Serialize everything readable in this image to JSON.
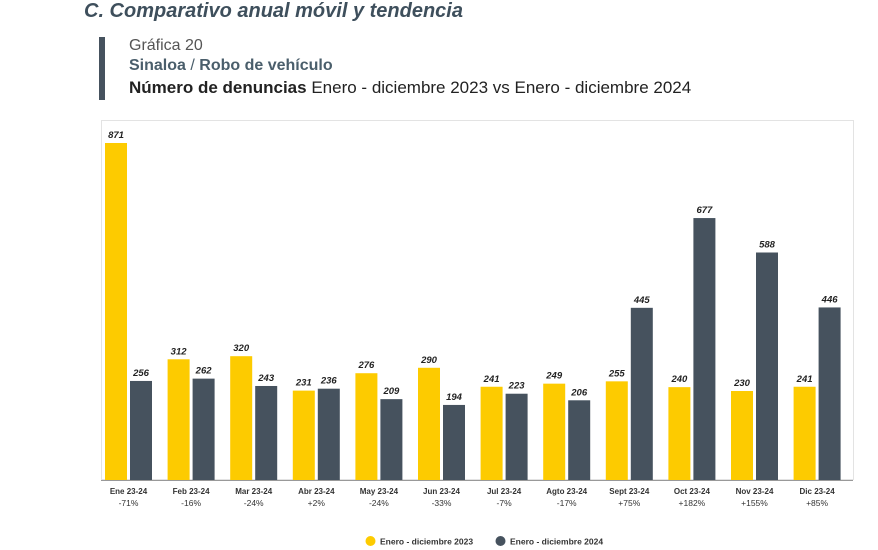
{
  "header": {
    "section_title": "C. Comparativo anual móvil y tendencia",
    "chart_number": "Gráfica 20",
    "state": "Sinaloa",
    "separator": "/",
    "crime": "Robo de vehículo",
    "metric_bold": "Número de denuncias",
    "period": "Enero - diciembre 2023 vs Enero - diciembre 2024"
  },
  "colors": {
    "series_2023": "#fdcb00",
    "series_2024": "#46525e",
    "title": "#3e4f5c",
    "axis": "#999999"
  },
  "chart_data": {
    "type": "bar",
    "title": "Número de denuncias Enero - diciembre 2023 vs Enero - diciembre 2024",
    "categories": [
      "Ene 23-24",
      "Feb 23-24",
      "Mar 23-24",
      "Abr 23-24",
      "May 23-24",
      "Jun 23-24",
      "Jul 23-24",
      "Agto 23-24",
      "Sept 23-24",
      "Oct 23-24",
      "Nov 23-24",
      "Dic 23-24"
    ],
    "pct_change": [
      "-71%",
      "-16%",
      "-24%",
      "+2%",
      "-24%",
      "-33%",
      "-7%",
      "-17%",
      "+75%",
      "+182%",
      "+155%",
      "+85%"
    ],
    "series": [
      {
        "name": "Enero - diciembre 2023",
        "values": [
          871,
          312,
          320,
          231,
          276,
          290,
          241,
          249,
          255,
          240,
          230,
          241
        ]
      },
      {
        "name": "Enero - diciembre 2024",
        "values": [
          256,
          262,
          243,
          236,
          209,
          194,
          223,
          206,
          445,
          677,
          588,
          446
        ]
      }
    ],
    "ylim": [
      0,
      871
    ],
    "grid": false,
    "legend_position": "bottom-center"
  }
}
